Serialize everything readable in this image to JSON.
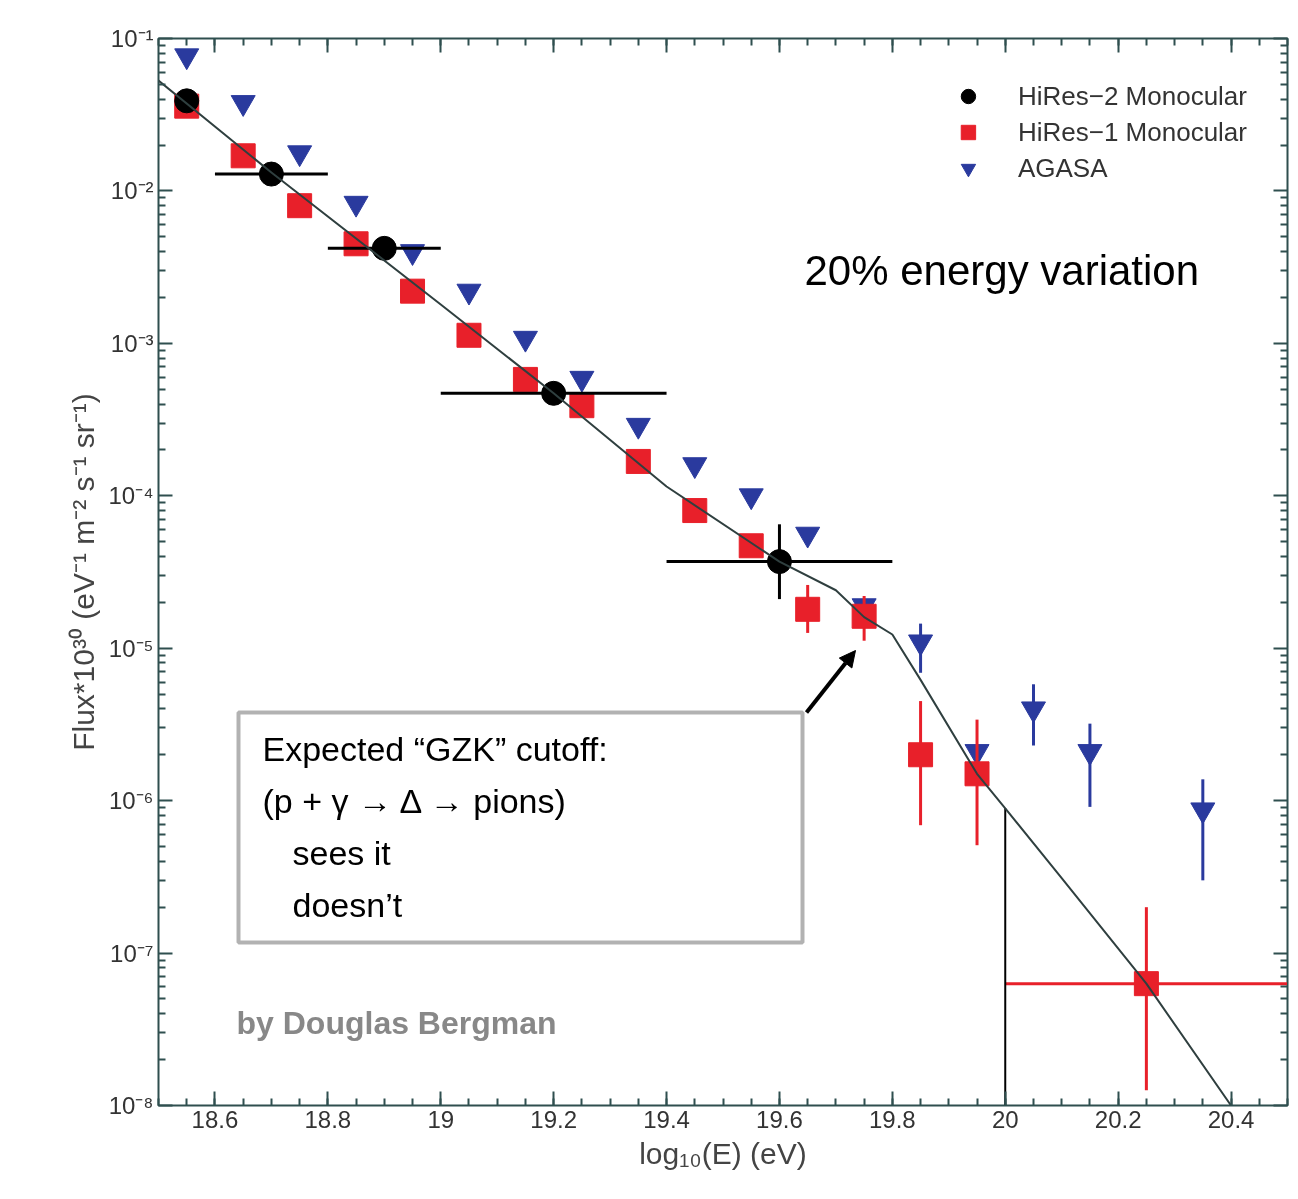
{
  "chart_data": {
    "type": "scatter",
    "xlabel": "log₁₀(E) (eV)",
    "ylabel": "Flux*10³⁰ (eV⁻¹ m⁻² s⁻¹ sr⁻¹)",
    "log": "y",
    "grid": false,
    "legend": "top right",
    "xlim": [
      18.5,
      20.5
    ],
    "ylim": [
      1e-08,
      0.1
    ],
    "xticks": [
      18.6,
      18.8,
      19,
      19.2,
      19.4,
      19.6,
      19.8,
      20,
      20.2,
      20.4
    ],
    "yticks": [
      {
        "value": 1e-08,
        "label": "10⁻⁸"
      },
      {
        "value": 1e-07,
        "label": "10⁻⁷"
      },
      {
        "value": 1e-06,
        "label": "10⁻⁶"
      },
      {
        "value": 1e-05,
        "label": "10⁻⁵"
      },
      {
        "value": 0.0001,
        "label": "10⁻⁴"
      },
      {
        "value": 0.001,
        "label": "10⁻³"
      },
      {
        "value": 0.01,
        "label": "10⁻²"
      },
      {
        "value": 0.1,
        "label": "10⁻¹"
      }
    ],
    "series": [
      {
        "name": "HiRes−2 Monocular",
        "color": "#000000",
        "marker": "circle",
        "x": [
          18.55,
          18.7,
          18.9,
          19.2,
          19.6
        ],
        "values": [
          0.039,
          0.0129,
          0.0042,
          0.00047,
          3.7e-05
        ],
        "errors": [
          null,
          null,
          null,
          null,
          [
            2.1e-05,
            6.5e-05
          ]
        ],
        "xerrors": [
          null,
          [
            18.6,
            18.8
          ],
          [
            18.8,
            19.0
          ],
          [
            19.0,
            19.4
          ],
          [
            19.4,
            19.8
          ]
        ]
      },
      {
        "name": "HiRes−1 Monocular",
        "color": "#e8202a",
        "marker": "square",
        "x": [
          18.55,
          18.65,
          18.75,
          18.85,
          18.95,
          19.05,
          19.15,
          19.25,
          19.35,
          19.45,
          19.55,
          19.65,
          19.75,
          19.85,
          19.95,
          20.25
        ],
        "values": [
          0.036,
          0.017,
          0.008,
          0.0045,
          0.0022,
          0.00113,
          0.00058,
          0.00039,
          0.000168,
          8e-05,
          4.7e-05,
          1.8e-05,
          1.62e-05,
          2e-06,
          1.5e-06,
          6.3e-08
        ],
        "errors": [
          null,
          null,
          null,
          null,
          null,
          null,
          null,
          null,
          null,
          null,
          null,
          [
            1.26e-05,
            2.6e-05
          ],
          [
            1.12e-05,
            2.2e-05
          ],
          [
            6.9e-07,
            4.5e-06
          ],
          [
            5.1e-07,
            3.4e-06
          ],
          [
            1.26e-08,
            2e-07
          ]
        ],
        "xerrors": [
          null,
          null,
          null,
          null,
          null,
          null,
          null,
          null,
          null,
          null,
          null,
          null,
          null,
          null,
          null,
          [
            20.0,
            20.5
          ]
        ]
      },
      {
        "name": "AGASA",
        "color": "#2a3a9e",
        "marker": "triangle",
        "x": [
          18.55,
          18.65,
          18.75,
          18.85,
          18.95,
          19.05,
          19.15,
          19.25,
          19.35,
          19.45,
          19.55,
          19.65,
          19.75,
          19.85,
          19.95,
          20.05,
          20.15,
          20.35
        ],
        "values": [
          0.077,
          0.038,
          0.0178,
          0.0083,
          0.004,
          0.0022,
          0.00108,
          0.00059,
          0.00029,
          0.00016,
          0.0001,
          5.6e-05,
          1.9e-05,
          1.1e-05,
          2.1e-06,
          4e-06,
          2.1e-06,
          8.7e-07
        ],
        "errors": [
          null,
          null,
          null,
          null,
          null,
          null,
          null,
          null,
          null,
          null,
          null,
          null,
          null,
          [
            6.9e-06,
            1.45e-05
          ],
          null,
          [
            2.3e-06,
            5.8e-06
          ],
          [
            9.1e-07,
            3.2e-06
          ],
          [
            3e-07,
            1.38e-06
          ]
        ]
      },
      {
        "type": "line",
        "color": "#2f3f3f",
        "marker": "none",
        "x": [
          18.5,
          18.7,
          19.0,
          19.2,
          19.4,
          19.6,
          19.7,
          19.75,
          19.8,
          19.85,
          19.95,
          20.0,
          20.1,
          20.25,
          20.4
        ],
        "values": [
          0.053,
          0.0132,
          0.0018,
          0.00047,
          0.000115,
          3.7e-05,
          2.4e-05,
          1.6e-05,
          1.23e-05,
          6.2e-06,
          1.5e-06,
          8.9e-07,
          3.1e-07,
          6.3e-08,
          1e-08
        ]
      },
      {
        "type": "line",
        "color": "#000000",
        "marker": "none",
        "x": [
          20.0,
          20.0
        ],
        "values": [
          1e-08,
          8.9e-07
        ]
      }
    ],
    "annotations": [
      "Expected “GZK” cutoff:",
      "(p + γ → Δ → pions)",
      "sees it",
      "doesn’t",
      "20% energy variation",
      "by Douglas Bergman"
    ]
  }
}
